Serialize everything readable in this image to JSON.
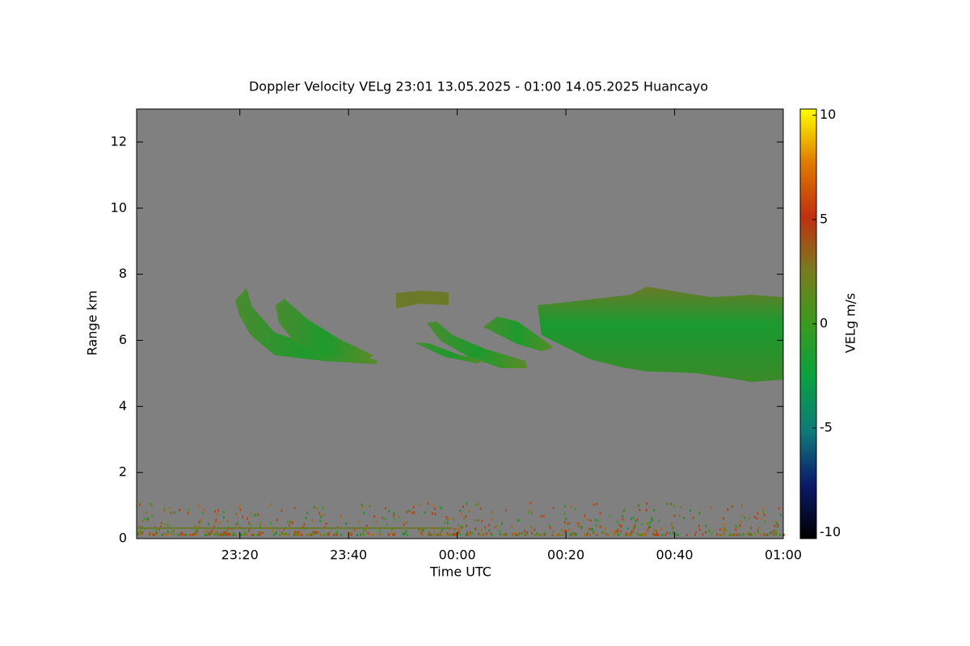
{
  "chart_data": {
    "type": "heatmap",
    "title": "Doppler Velocity VELg   23:01 13.05.2025 - 01:00 14.05.2025 Huancayo",
    "x_label": "Time UTC",
    "y_label": "Range km",
    "colorbar_label": "VELg m/s",
    "xlim": [
      1,
      120
    ],
    "xticks": [
      {
        "value": 20,
        "label": "23:20"
      },
      {
        "value": 40,
        "label": "23:40"
      },
      {
        "value": 60,
        "label": "00:00"
      },
      {
        "value": 80,
        "label": "00:20"
      },
      {
        "value": 100,
        "label": "00:40"
      },
      {
        "value": 120,
        "label": "01:00"
      }
    ],
    "ylim": [
      0,
      13
    ],
    "yticks": [
      0,
      2,
      4,
      6,
      8,
      10,
      12
    ],
    "clim": [
      -10.3,
      10.3
    ],
    "cticks": [
      -10,
      -5,
      0,
      5,
      10
    ],
    "colormap": [
      "#000000",
      "#0b1a6a",
      "#0f7a7a",
      "#0aa040",
      "#3a9a20",
      "#7a7a20",
      "#c03010",
      "#e07a00",
      "#ffff00"
    ],
    "background": "#808080"
  }
}
